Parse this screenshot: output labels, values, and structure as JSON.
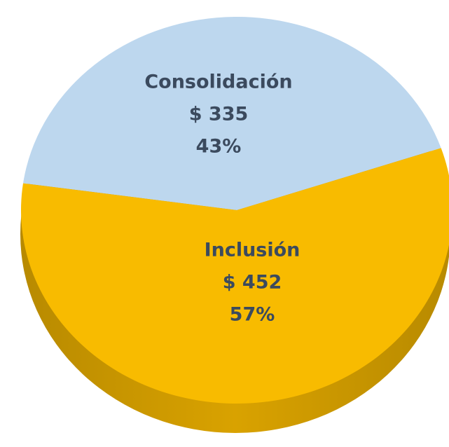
{
  "chart_data": {
    "type": "pie",
    "categories": [
      "Consolidación",
      "Inclusión"
    ],
    "values": [
      335,
      452
    ],
    "value_labels": [
      "$ 335",
      "$ 452"
    ],
    "percents": [
      43,
      57
    ],
    "percent_labels": [
      "43%",
      "57%"
    ],
    "colors": [
      "#bdd7ee",
      "#f8bb00"
    ]
  }
}
